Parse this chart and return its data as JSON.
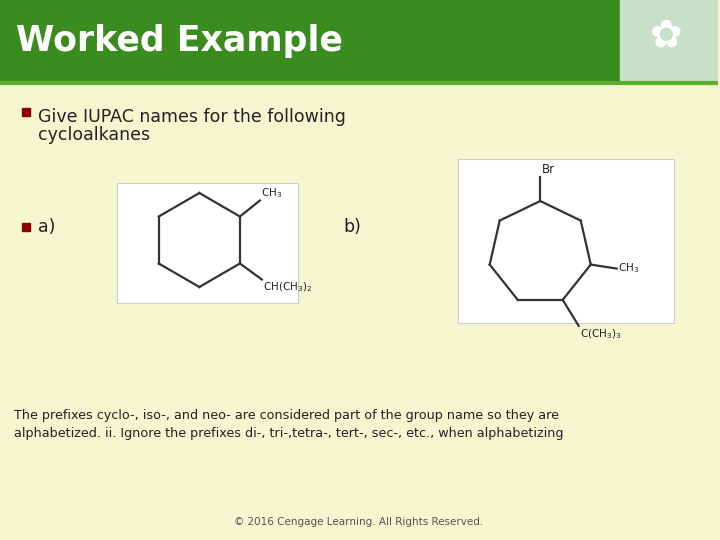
{
  "title": "Worked Example",
  "title_bg_color": "#3a8c1e",
  "title_text_color": "#ffffff",
  "slide_bg_color": "#f5f5d0",
  "bullet_color": "#8b0000",
  "bullet1_text_line1": "Give IUPAC names for the following",
  "bullet1_text_line2": "cycloalkanes",
  "bullet2_label_a": "a)",
  "bullet2_label_b": "b)",
  "footer_text_line1": "The prefixes cyclo-, iso-, and neo- are considered part of the group name so they are",
  "footer_text_line2": "alphabetized. ii. Ignore the prefixes di-, tri-,tetra-, tert-, sec-, etc., when alphabetizing",
  "copyright": "© 2016 Cengage Learning. All Rights Reserved.",
  "line_color": "#5aaf2e",
  "mol_line_color": "#333333",
  "text_color": "#222222",
  "footer_color": "#222222",
  "copyright_color": "#555555"
}
